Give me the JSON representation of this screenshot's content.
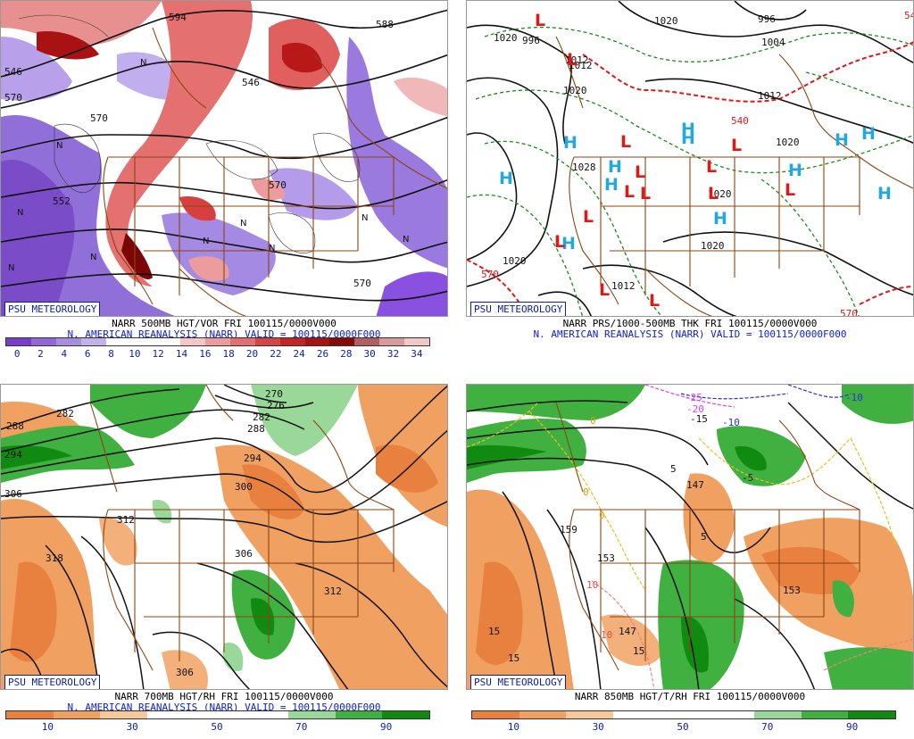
{
  "colors": {
    "title_blue": "#1020d0",
    "badge_blue": "#1020a0",
    "contour": "#111111",
    "borders": "#8b4513",
    "vor_low": [
      "#6a3cc8",
      "#9a78dc",
      "#c8b4ee"
    ],
    "vor_high": [
      "#f0b8b8",
      "#e88888",
      "#dc5050",
      "#c81e1e",
      "#a01010",
      "#7a0606"
    ],
    "rh_dry": "#f0a060",
    "rh_wet": "#2ea82e",
    "high_symbol": "#22a8e0",
    "low_symbol": "#e01818",
    "thickness_line": "#1a8a1a",
    "freezing_line": "#e01818"
  },
  "panels": [
    {
      "id": "p500",
      "badge": "PSU METEOROLOGY",
      "line1": "NARR 500MB HGT/VOR FRI 100115/0000V000",
      "line2": "N. AMERICAN REANALYSIS (NARR) VALID = 100115/0000F000",
      "colorbar": {
        "colors": [
          "#7a3ccc",
          "#9268d6",
          "#a98ee0",
          "#c2b2ea",
          "#ffffff",
          "#ffffff",
          "#ffffff",
          "#f4c6c6",
          "#ec9c9c",
          "#e27070",
          "#d64444",
          "#c42424",
          "#a81212",
          "#880808",
          "#b06060",
          "#d89a9a",
          "#f0c8c8"
        ],
        "ticks": [
          "0",
          "2",
          "4",
          "6",
          "8",
          "10",
          "12",
          "14",
          "16",
          "18",
          "20",
          "22",
          "24",
          "26",
          "28",
          "30",
          "32",
          "34"
        ]
      },
      "labels": [
        "546",
        "594",
        "570",
        "552",
        "570",
        "546",
        "570",
        "588",
        "570"
      ],
      "symbols": [
        "N",
        "N",
        "N",
        "N",
        "N",
        "N",
        "N",
        "N",
        "N",
        "N"
      ]
    },
    {
      "id": "pprs",
      "badge": "PSU METEOROLOGY",
      "line1": "NARR PRS/1000-500MB THK FRI 100115/0000V000",
      "line2": "N. AMERICAN REANALYSIS (NARR) VALID = 100115/0000F000",
      "labels": [
        "1020",
        "996",
        "1004",
        "996",
        "1012",
        "1020",
        "1012",
        "1020",
        "1028",
        "1020",
        "1020",
        "1012",
        "1020",
        "1012",
        "1020"
      ],
      "thickness_labels": [
        "540",
        "570",
        "570",
        "540"
      ],
      "highs": [
        "H",
        "H",
        "H",
        "H",
        "H",
        "H",
        "H",
        "H",
        "H",
        "H",
        "H",
        "H"
      ],
      "lows": [
        "L",
        "L",
        "L",
        "L",
        "L",
        "L",
        "L",
        "L",
        "L",
        "L",
        "L",
        "L",
        "L",
        "L"
      ]
    },
    {
      "id": "p700",
      "badge": "PSU METEOROLOGY",
      "line1": "NARR 700MB HGT/RH FRI 100115/0000V000",
      "line2": "N. AMERICAN REANALYSIS (NARR) VALID = 100115/0000F000",
      "colorbar": {
        "colors": [
          "#e88040",
          "#f0a060",
          "#f8c898",
          "#ffffff",
          "#ffffff",
          "#ffffff",
          "#9ad89a",
          "#40b040",
          "#108a10"
        ],
        "ticks": [
          "10",
          "30",
          "50",
          "70",
          "90"
        ]
      },
      "labels": [
        "288",
        "282",
        "294",
        "306",
        "270",
        "276",
        "282",
        "288",
        "294",
        "300",
        "312",
        "318",
        "306",
        "312",
        "306"
      ]
    },
    {
      "id": "p850",
      "badge": "PSU METEOROLOGY",
      "line1": "NARR 850MB HGT/T/RH FRI 100115/0000V000",
      "line2": "",
      "colorbar": {
        "colors": [
          "#e88040",
          "#f0a060",
          "#f8c898",
          "#ffffff",
          "#ffffff",
          "#ffffff",
          "#9ad89a",
          "#40b040",
          "#108a10"
        ],
        "ticks": [
          "10",
          "30",
          "50",
          "70",
          "90"
        ]
      },
      "labels": [
        "147",
        "159",
        "153",
        "153",
        "147",
        "-25",
        "-20",
        "-15",
        "-10",
        "-10",
        "-5",
        "5",
        "5",
        "0",
        "0",
        "0",
        "10",
        "10",
        "15",
        "15",
        "15"
      ]
    }
  ]
}
